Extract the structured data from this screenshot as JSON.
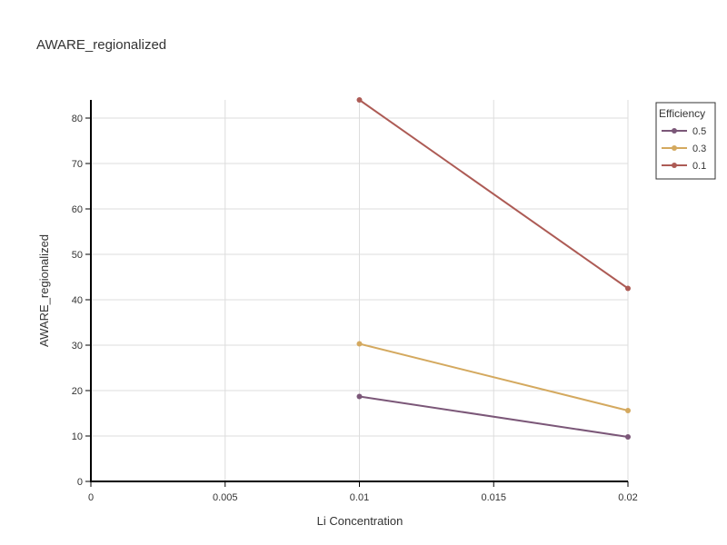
{
  "chart_data": {
    "type": "line",
    "title": "AWARE_regionalized",
    "xlabel": "Li Concentration",
    "ylabel": "AWARE_regionalized",
    "xlim": [
      0,
      0.02
    ],
    "ylim": [
      0,
      84
    ],
    "x_ticks": [
      0,
      0.005,
      0.01,
      0.015,
      0.02
    ],
    "x_tick_labels": [
      "0",
      "0.005",
      "0.01",
      "0.015",
      "0.02"
    ],
    "y_ticks": [
      0,
      10,
      20,
      30,
      40,
      50,
      60,
      70,
      80
    ],
    "y_tick_labels": [
      "0",
      "10",
      "20",
      "30",
      "40",
      "50",
      "60",
      "70",
      "80"
    ],
    "grid": true,
    "legend": {
      "title": "Efficiency",
      "position": "top-right"
    },
    "series": [
      {
        "name": "0.5",
        "color": "#7b5778",
        "x": [
          0.01,
          0.02
        ],
        "y": [
          18.7,
          9.8
        ]
      },
      {
        "name": "0.3",
        "color": "#d4a95f",
        "x": [
          0.01,
          0.02
        ],
        "y": [
          30.3,
          15.6
        ]
      },
      {
        "name": "0.1",
        "color": "#ad5b55",
        "x": [
          0.01,
          0.02
        ],
        "y": [
          84.0,
          42.5
        ]
      }
    ]
  }
}
